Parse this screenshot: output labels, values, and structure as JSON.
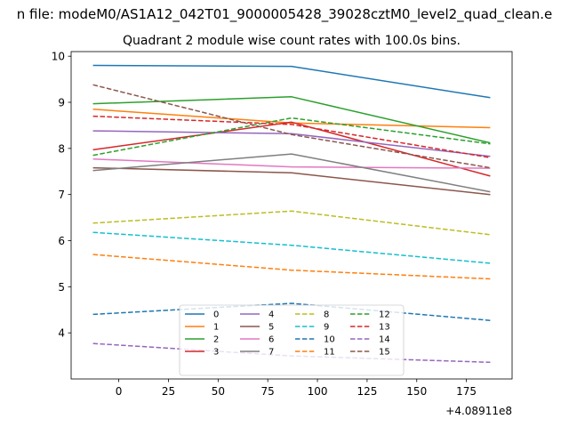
{
  "suptitle": "n file: modeM0/AS1A12_042T01_9000005428_39028cztM0_level2_quad_clean.e",
  "chart_data": {
    "type": "line",
    "title": "Quadrant 2 module wise count rates with 100.0s bins.",
    "xlabel": "",
    "ylabel": "",
    "x": [
      -13,
      87,
      187
    ],
    "x_offset_label": "+4.08911e8",
    "xlim": [
      -24,
      198
    ],
    "ylim": [
      3.0,
      10.1
    ],
    "xticks": [
      0,
      25,
      50,
      75,
      100,
      125,
      150,
      175
    ],
    "yticks": [
      4,
      5,
      6,
      7,
      8,
      9,
      10
    ],
    "grid": false,
    "legend_position": "lower-center",
    "legend_columns": 4,
    "series": [
      {
        "name": "0",
        "color": "#1f77b4",
        "dash": "solid",
        "values": [
          9.8,
          9.78,
          9.1
        ]
      },
      {
        "name": "1",
        "color": "#ff7f0e",
        "dash": "solid",
        "values": [
          8.85,
          8.55,
          8.45
        ]
      },
      {
        "name": "2",
        "color": "#2ca02c",
        "dash": "solid",
        "values": [
          8.97,
          9.12,
          8.12
        ]
      },
      {
        "name": "3",
        "color": "#d62728",
        "dash": "solid",
        "values": [
          7.97,
          8.57,
          7.4
        ]
      },
      {
        "name": "4",
        "color": "#9467bd",
        "dash": "solid",
        "values": [
          8.38,
          8.32,
          7.83
        ]
      },
      {
        "name": "5",
        "color": "#8c564b",
        "dash": "solid",
        "values": [
          7.58,
          7.47,
          7.0
        ]
      },
      {
        "name": "6",
        "color": "#e377c2",
        "dash": "solid",
        "values": [
          7.77,
          7.6,
          7.57
        ]
      },
      {
        "name": "7",
        "color": "#7f7f7f",
        "dash": "solid",
        "values": [
          7.52,
          7.88,
          7.06
        ]
      },
      {
        "name": "8",
        "color": "#bcbd22",
        "dash": "dashed",
        "values": [
          6.38,
          6.64,
          6.13
        ]
      },
      {
        "name": "9",
        "color": "#17becf",
        "dash": "dashed",
        "values": [
          6.18,
          5.9,
          5.51
        ]
      },
      {
        "name": "10",
        "color": "#1f77b4",
        "dash": "dashed",
        "values": [
          4.4,
          4.64,
          4.27
        ]
      },
      {
        "name": "11",
        "color": "#ff7f0e",
        "dash": "dashed",
        "values": [
          5.7,
          5.36,
          5.17
        ]
      },
      {
        "name": "12",
        "color": "#2ca02c",
        "dash": "dashed",
        "values": [
          7.85,
          8.66,
          8.1
        ]
      },
      {
        "name": "13",
        "color": "#d62728",
        "dash": "dashed",
        "values": [
          8.7,
          8.52,
          7.8
        ]
      },
      {
        "name": "14",
        "color": "#9467bd",
        "dash": "dashed",
        "values": [
          3.77,
          3.5,
          3.36
        ]
      },
      {
        "name": "15",
        "color": "#8c564b",
        "dash": "dashed",
        "values": [
          9.38,
          8.3,
          7.58
        ]
      }
    ]
  }
}
